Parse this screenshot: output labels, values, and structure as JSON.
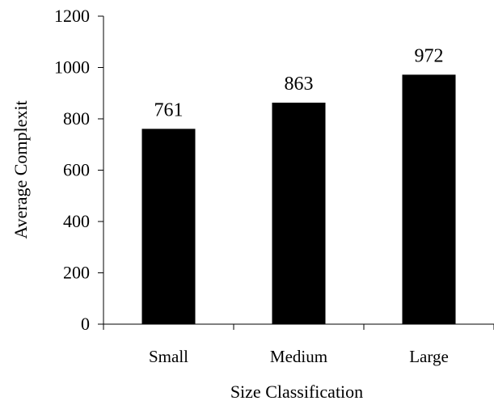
{
  "chart_data": {
    "type": "bar",
    "title": "",
    "xlabel": "Size Classification",
    "ylabel": "Average Complexit",
    "categories": [
      "Small",
      "Medium",
      "Large"
    ],
    "values": [
      761,
      863,
      972
    ],
    "data_labels": [
      "761",
      "863",
      "972"
    ],
    "ylim": [
      0,
      1200
    ],
    "yticks": [
      0,
      200,
      400,
      600,
      800,
      1000,
      1200
    ],
    "ytick_labels": [
      "0",
      "200",
      "400",
      "600",
      "800",
      "1000",
      "1200"
    ],
    "grid": false,
    "legend": "none",
    "bar_color": "#000000"
  }
}
